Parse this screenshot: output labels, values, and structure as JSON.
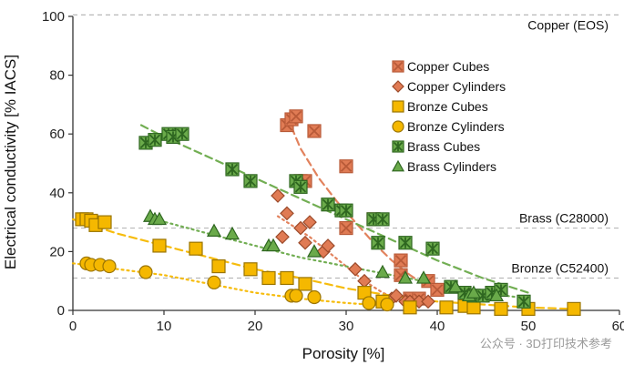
{
  "chart_data": {
    "type": "scatter",
    "title": "",
    "xlabel": "Porosity [%]",
    "ylabel": "Electrical conductivity [% IACS]",
    "xlim": [
      0,
      60
    ],
    "ylim": [
      0,
      100
    ],
    "xticks": [
      0,
      10,
      20,
      30,
      40,
      50,
      60
    ],
    "yticks": [
      0,
      20,
      40,
      60,
      80,
      100
    ],
    "reference_lines": [
      {
        "name": "Copper (EOS)",
        "y": 100.5
      },
      {
        "name": "Brass (C28000)",
        "y": 28
      },
      {
        "name": "Bronze (C52400)",
        "y": 11
      }
    ],
    "series": [
      {
        "name": "Copper Cubes",
        "marker": "square-x",
        "color": "#e07b54",
        "edge": "#b85a38",
        "points": [
          [
            23.5,
            63
          ],
          [
            24,
            65
          ],
          [
            24.5,
            66
          ],
          [
            25,
            44
          ],
          [
            25.5,
            44
          ],
          [
            26.5,
            61
          ],
          [
            30,
            49
          ],
          [
            30,
            28
          ],
          [
            33,
            31
          ],
          [
            36,
            17
          ],
          [
            36,
            12
          ],
          [
            37,
            4
          ],
          [
            38,
            4
          ],
          [
            39,
            10
          ],
          [
            40,
            7
          ]
        ]
      },
      {
        "name": "Copper Cylinders",
        "marker": "diamond",
        "color": "#e07b54",
        "edge": "#9c4a2a",
        "points": [
          [
            22.5,
            39
          ],
          [
            23,
            25
          ],
          [
            23.5,
            33
          ],
          [
            25,
            28
          ],
          [
            25.5,
            23
          ],
          [
            26,
            30
          ],
          [
            27.5,
            20
          ],
          [
            28,
            22
          ],
          [
            31,
            14
          ],
          [
            32,
            10
          ],
          [
            35,
            4
          ],
          [
            35.5,
            5
          ],
          [
            36.5,
            3
          ],
          [
            37,
            3
          ],
          [
            38,
            3
          ],
          [
            39,
            3
          ]
        ]
      },
      {
        "name": "Bronze Cubes",
        "marker": "square",
        "color": "#f5b800",
        "edge": "#9a7400",
        "points": [
          [
            1,
            31
          ],
          [
            1.5,
            31
          ],
          [
            2,
            30.5
          ],
          [
            2.5,
            29
          ],
          [
            3.5,
            30
          ],
          [
            9.5,
            22
          ],
          [
            13.5,
            21
          ],
          [
            16,
            15
          ],
          [
            19.5,
            14
          ],
          [
            21.5,
            11
          ],
          [
            23.5,
            11
          ],
          [
            25.5,
            9
          ],
          [
            32,
            6
          ],
          [
            34,
            3
          ],
          [
            37,
            1
          ],
          [
            41,
            1
          ],
          [
            43,
            1.5
          ],
          [
            44,
            1
          ],
          [
            47,
            0.5
          ],
          [
            50,
            0.5
          ],
          [
            55,
            0.5
          ]
        ]
      },
      {
        "name": "Bronze Cylinders",
        "marker": "circle",
        "color": "#f5b800",
        "edge": "#9a7400",
        "points": [
          [
            1.5,
            16
          ],
          [
            2,
            15.5
          ],
          [
            3,
            15.5
          ],
          [
            4,
            15
          ],
          [
            8,
            13
          ],
          [
            15.5,
            9.5
          ],
          [
            24,
            5
          ],
          [
            24.5,
            5
          ],
          [
            26.5,
            4.5
          ],
          [
            32.5,
            2.5
          ],
          [
            34.5,
            2
          ]
        ]
      },
      {
        "name": "Brass Cubes",
        "marker": "square-star",
        "color": "#6aaa4a",
        "edge": "#2e6620",
        "points": [
          [
            8,
            57
          ],
          [
            9,
            58
          ],
          [
            10.5,
            60
          ],
          [
            11,
            59
          ],
          [
            12,
            60
          ],
          [
            17.5,
            48
          ],
          [
            19.5,
            44
          ],
          [
            24.5,
            44
          ],
          [
            25,
            42
          ],
          [
            28,
            36
          ],
          [
            29.5,
            34
          ],
          [
            30,
            34
          ],
          [
            33,
            31
          ],
          [
            33.5,
            23
          ],
          [
            34,
            31
          ],
          [
            36.5,
            23
          ],
          [
            39.5,
            21
          ],
          [
            41.5,
            8
          ],
          [
            43,
            6
          ],
          [
            44,
            5
          ],
          [
            45,
            5
          ],
          [
            46,
            6
          ],
          [
            47,
            7
          ],
          [
            49.5,
            3
          ]
        ]
      },
      {
        "name": "Brass Cylinders",
        "marker": "triangle",
        "color": "#6aaa4a",
        "edge": "#2e6620",
        "points": [
          [
            8.5,
            32
          ],
          [
            9,
            31
          ],
          [
            9.5,
            31
          ],
          [
            15.5,
            27
          ],
          [
            17.5,
            26
          ],
          [
            21.5,
            22
          ],
          [
            22,
            22
          ],
          [
            26.5,
            20
          ],
          [
            34,
            13
          ],
          [
            36.5,
            11
          ],
          [
            38.5,
            11
          ],
          [
            42,
            8
          ],
          [
            43.5,
            5
          ],
          [
            44,
            6
          ],
          [
            46.5,
            5
          ]
        ]
      }
    ],
    "trend_lines": [
      {
        "series": "Copper Cubes",
        "style": "dashed",
        "color": "#e07b54",
        "points": [
          [
            23.5,
            66
          ],
          [
            25,
            55
          ],
          [
            27,
            45
          ],
          [
            29,
            37
          ],
          [
            31,
            30
          ],
          [
            33,
            23
          ],
          [
            35,
            17
          ],
          [
            37,
            12
          ],
          [
            38.5,
            9
          ]
        ]
      },
      {
        "series": "Copper Cylinders",
        "style": "dotted",
        "color": "#e07b54",
        "points": [
          [
            22.5,
            32
          ],
          [
            24,
            29
          ],
          [
            26,
            25
          ],
          [
            28,
            20
          ],
          [
            30,
            15
          ],
          [
            32,
            10
          ],
          [
            34,
            6
          ],
          [
            36,
            3.5
          ],
          [
            38,
            2
          ]
        ]
      },
      {
        "series": "Bronze Cubes",
        "style": "dashed",
        "color": "#f5b800",
        "points": [
          [
            0,
            31
          ],
          [
            5,
            26
          ],
          [
            10,
            22
          ],
          [
            15,
            18
          ],
          [
            20,
            14
          ],
          [
            25,
            11
          ],
          [
            30,
            7.5
          ],
          [
            35,
            5
          ],
          [
            40,
            3
          ],
          [
            45,
            2
          ],
          [
            50,
            1
          ],
          [
            55,
            0.5
          ]
        ]
      },
      {
        "series": "Bronze Cylinders",
        "style": "dotted",
        "color": "#f5b800",
        "points": [
          [
            0,
            16
          ],
          [
            5,
            14
          ],
          [
            10,
            12
          ],
          [
            15,
            9
          ],
          [
            20,
            6
          ],
          [
            25,
            4
          ],
          [
            30,
            2.5
          ],
          [
            35,
            1.5
          ]
        ]
      },
      {
        "series": "Brass Cubes",
        "style": "dashed",
        "color": "#6aaa4a",
        "points": [
          [
            7.5,
            63
          ],
          [
            10,
            59
          ],
          [
            15,
            52
          ],
          [
            20,
            45
          ],
          [
            25,
            38
          ],
          [
            30,
            31
          ],
          [
            35,
            24
          ],
          [
            40,
            17
          ],
          [
            45,
            11
          ],
          [
            50,
            6
          ]
        ]
      },
      {
        "series": "Brass Cylinders",
        "style": "dotted",
        "color": "#6aaa4a",
        "points": [
          [
            9,
            31
          ],
          [
            15,
            26
          ],
          [
            20,
            22
          ],
          [
            25,
            18
          ],
          [
            30,
            15
          ],
          [
            35,
            12
          ],
          [
            40,
            9
          ],
          [
            45,
            6
          ],
          [
            50,
            4
          ]
        ]
      }
    ]
  },
  "watermark": "公众号 · 3D打印技术参考"
}
